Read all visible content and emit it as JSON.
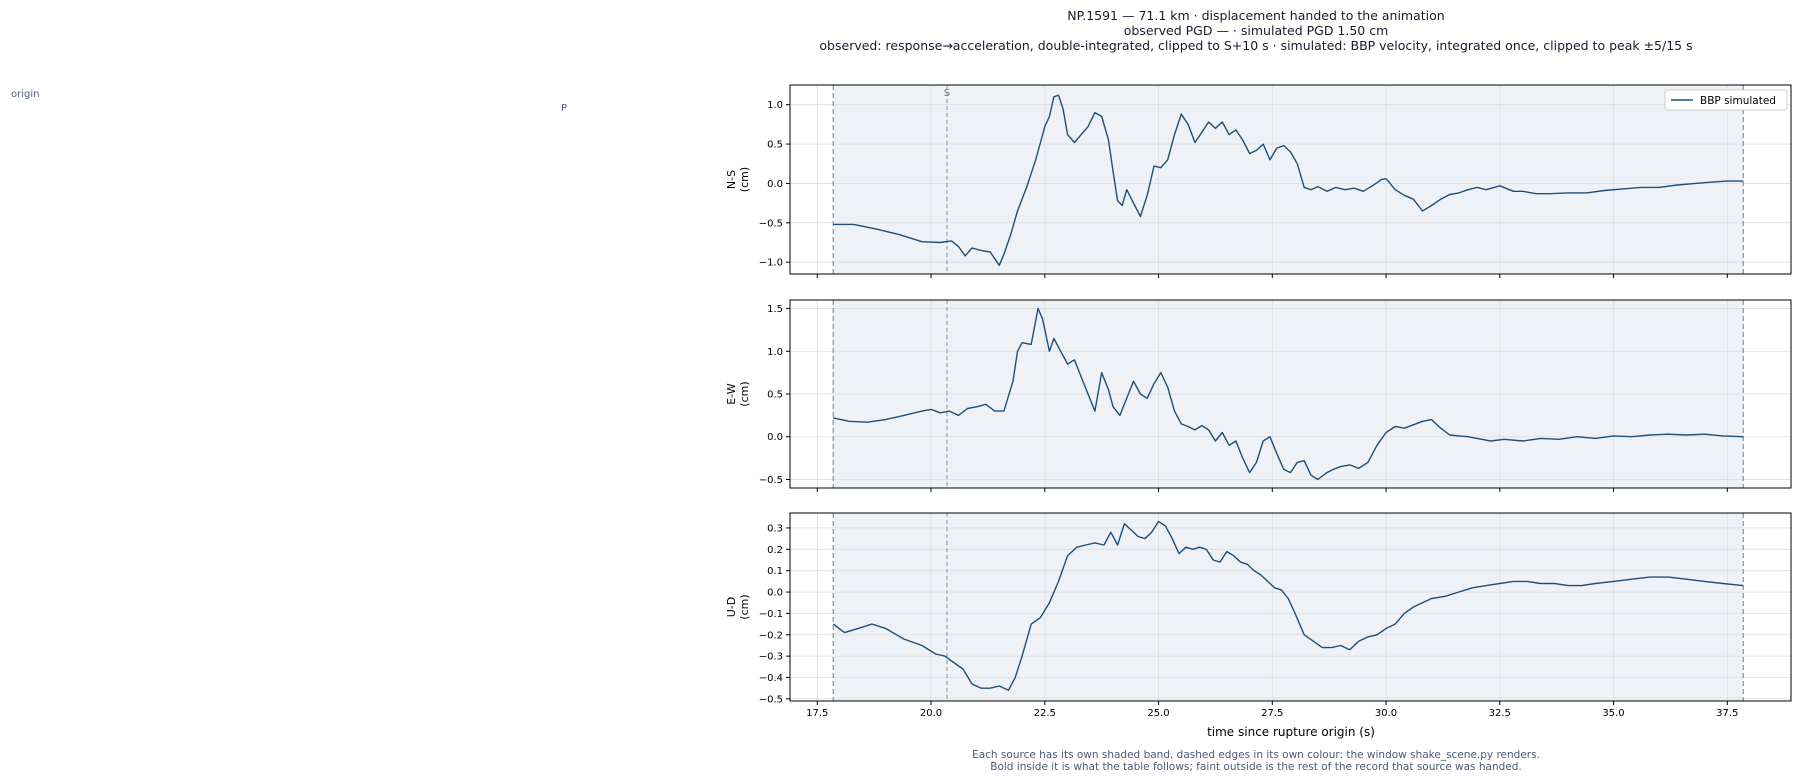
{
  "header": {
    "line1": "NP.1591  —  71.1 km   ·   displacement handed to the animation",
    "line2": "observed PGD —   ·   simulated PGD 1.50 cm",
    "line3": "observed: response→acceleration, double-integrated, clipped to S+10 s   ·   simulated: BBP velocity, integrated once, clipped to peak ±5/15 s"
  },
  "footer": {
    "line1": "Each source has its own shaded band, dashed edges in its own colour: the window shake_scene.py renders.",
    "line2": "Bold inside it is what the table follows;   faint outside is the rest of the record that source was handed."
  },
  "left_panel": {
    "origin_label": "origin",
    "p_label": "P"
  },
  "colors": {
    "series": "#1f4e79",
    "band": "#e3e9f0",
    "band_edge": "#6f86ad",
    "phase_line": "#8a9db5",
    "grid": "#dddddd",
    "footer_text": "#4a5a78"
  },
  "chart_data": {
    "type": "line",
    "xlabel": "time since rupture origin (s)",
    "xlim": [
      16.9,
      38.9
    ],
    "xticks": [
      17.5,
      20.0,
      22.5,
      25.0,
      27.5,
      30.0,
      32.5,
      35.0,
      37.5
    ],
    "xtick_labels": [
      "17.5",
      "20.0",
      "22.5",
      "25.0",
      "27.5",
      "30.0",
      "32.5",
      "35.0",
      "37.5"
    ],
    "window": [
      17.85,
      37.85
    ],
    "phase_markers": [
      {
        "label": "S",
        "t": 20.35
      }
    ],
    "legend": {
      "label": "BBP simulated",
      "placement": "top-right"
    },
    "grid": true,
    "panels": [
      {
        "ylabel_line1": "N-S",
        "ylabel_line2": "(cm)",
        "ylim": [
          -1.15,
          1.25
        ],
        "yticks": [
          -1.0,
          -0.5,
          0.0,
          0.5,
          1.0
        ],
        "ytick_labels": [
          "−1.0",
          "−0.5",
          "0.0",
          "0.5",
          "1.0"
        ],
        "series": [
          {
            "name": "BBP simulated",
            "x": [
              17.85,
              18.3,
              18.8,
              19.3,
              19.8,
              20.2,
              20.45,
              20.6,
              20.75,
              20.9,
              21.1,
              21.3,
              21.5,
              21.6,
              21.75,
              21.9,
              22.1,
              22.3,
              22.5,
              22.6,
              22.7,
              22.8,
              22.9,
              23.0,
              23.15,
              23.3,
              23.45,
              23.6,
              23.75,
              23.9,
              24.0,
              24.1,
              24.2,
              24.3,
              24.45,
              24.6,
              24.75,
              24.9,
              25.05,
              25.2,
              25.35,
              25.5,
              25.65,
              25.8,
              25.95,
              26.1,
              26.25,
              26.4,
              26.55,
              26.7,
              26.85,
              27.0,
              27.15,
              27.3,
              27.45,
              27.6,
              27.75,
              27.9,
              28.05,
              28.2,
              28.35,
              28.5,
              28.7,
              28.9,
              29.1,
              29.3,
              29.5,
              29.7,
              29.9,
              30.0,
              30.2,
              30.4,
              30.6,
              30.8,
              31.0,
              31.2,
              31.4,
              31.6,
              31.8,
              32.0,
              32.2,
              32.5,
              32.8,
              33.0,
              33.3,
              33.6,
              34.0,
              34.4,
              34.8,
              35.2,
              35.6,
              36.0,
              36.4,
              36.8,
              37.2,
              37.5,
              37.85
            ],
            "y": [
              -0.52,
              -0.52,
              -0.58,
              -0.65,
              -0.74,
              -0.75,
              -0.73,
              -0.8,
              -0.92,
              -0.82,
              -0.85,
              -0.87,
              -1.04,
              -0.9,
              -0.65,
              -0.35,
              -0.05,
              0.3,
              0.72,
              0.85,
              1.1,
              1.12,
              0.95,
              0.62,
              0.52,
              0.62,
              0.72,
              0.9,
              0.85,
              0.55,
              0.15,
              -0.22,
              -0.28,
              -0.08,
              -0.25,
              -0.42,
              -0.15,
              0.22,
              0.2,
              0.3,
              0.62,
              0.88,
              0.75,
              0.52,
              0.65,
              0.78,
              0.7,
              0.78,
              0.62,
              0.68,
              0.55,
              0.38,
              0.42,
              0.5,
              0.3,
              0.45,
              0.48,
              0.4,
              0.25,
              -0.05,
              -0.08,
              -0.04,
              -0.1,
              -0.05,
              -0.08,
              -0.06,
              -0.1,
              -0.03,
              0.05,
              0.06,
              -0.08,
              -0.15,
              -0.2,
              -0.35,
              -0.28,
              -0.2,
              -0.14,
              -0.12,
              -0.08,
              -0.05,
              -0.08,
              -0.03,
              -0.1,
              -0.1,
              -0.13,
              -0.13,
              -0.12,
              -0.12,
              -0.09,
              -0.07,
              -0.05,
              -0.05,
              -0.02,
              0.0,
              0.02,
              0.03,
              0.03
            ]
          }
        ]
      },
      {
        "ylabel_line1": "E-W",
        "ylabel_line2": "(cm)",
        "ylim": [
          -0.6,
          1.6
        ],
        "yticks": [
          -0.5,
          0.0,
          0.5,
          1.0,
          1.5
        ],
        "ytick_labels": [
          "−0.5",
          "0.0",
          "0.5",
          "1.0",
          "1.5"
        ],
        "series": [
          {
            "name": "BBP simulated",
            "x": [
              17.85,
              18.2,
              18.6,
              19.0,
              19.4,
              19.8,
              20.0,
              20.2,
              20.4,
              20.6,
              20.8,
              21.0,
              21.2,
              21.4,
              21.6,
              21.8,
              21.9,
              22.0,
              22.2,
              22.35,
              22.45,
              22.6,
              22.7,
              22.85,
              23.0,
              23.15,
              23.3,
              23.45,
              23.6,
              23.75,
              23.9,
              24.0,
              24.15,
              24.3,
              24.45,
              24.6,
              24.75,
              24.9,
              25.05,
              25.2,
              25.35,
              25.5,
              25.65,
              25.8,
              25.95,
              26.1,
              26.25,
              26.4,
              26.55,
              26.7,
              26.85,
              27.0,
              27.15,
              27.3,
              27.45,
              27.6,
              27.75,
              27.9,
              28.05,
              28.2,
              28.35,
              28.5,
              28.7,
              28.85,
              29.0,
              29.2,
              29.4,
              29.6,
              29.8,
              30.0,
              30.2,
              30.4,
              30.6,
              30.8,
              31.0,
              31.2,
              31.4,
              31.6,
              31.8,
              32.0,
              32.3,
              32.6,
              33.0,
              33.4,
              33.8,
              34.2,
              34.6,
              35.0,
              35.4,
              35.8,
              36.2,
              36.6,
              37.0,
              37.4,
              37.85
            ],
            "y": [
              0.22,
              0.18,
              0.17,
              0.2,
              0.25,
              0.3,
              0.32,
              0.28,
              0.3,
              0.25,
              0.33,
              0.35,
              0.38,
              0.3,
              0.3,
              0.65,
              1.0,
              1.1,
              1.08,
              1.5,
              1.38,
              1.0,
              1.15,
              1.0,
              0.85,
              0.9,
              0.7,
              0.5,
              0.3,
              0.75,
              0.55,
              0.35,
              0.25,
              0.45,
              0.65,
              0.5,
              0.45,
              0.62,
              0.75,
              0.58,
              0.3,
              0.15,
              0.12,
              0.08,
              0.13,
              0.08,
              -0.05,
              0.05,
              -0.1,
              -0.05,
              -0.25,
              -0.42,
              -0.3,
              -0.05,
              0.0,
              -0.2,
              -0.38,
              -0.42,
              -0.3,
              -0.28,
              -0.45,
              -0.5,
              -0.42,
              -0.38,
              -0.35,
              -0.33,
              -0.37,
              -0.3,
              -0.1,
              0.05,
              0.12,
              0.1,
              0.14,
              0.18,
              0.2,
              0.1,
              0.02,
              0.01,
              0.0,
              -0.02,
              -0.05,
              -0.03,
              -0.05,
              -0.02,
              -0.03,
              0.0,
              -0.02,
              0.01,
              0.0,
              0.02,
              0.03,
              0.02,
              0.03,
              0.01,
              0.0
            ]
          }
        ]
      },
      {
        "ylabel_line1": "U-D",
        "ylabel_line2": "(cm)",
        "ylim": [
          -0.51,
          0.37
        ],
        "yticks": [
          -0.5,
          -0.4,
          -0.3,
          -0.2,
          -0.1,
          0.0,
          0.1,
          0.2,
          0.3
        ],
        "ytick_labels": [
          "−0.5",
          "−0.4",
          "−0.3",
          "−0.2",
          "−0.1",
          "0.0",
          "0.1",
          "0.2",
          "0.3"
        ],
        "series": [
          {
            "name": "BBP simulated",
            "x": [
              17.85,
              18.1,
              18.4,
              18.7,
              19.0,
              19.4,
              19.8,
              20.1,
              20.3,
              20.5,
              20.7,
              20.9,
              21.1,
              21.3,
              21.5,
              21.7,
              21.85,
              22.0,
              22.2,
              22.4,
              22.6,
              22.8,
              23.0,
              23.2,
              23.4,
              23.6,
              23.8,
              23.95,
              24.1,
              24.25,
              24.4,
              24.55,
              24.7,
              24.85,
              25.0,
              25.15,
              25.3,
              25.45,
              25.6,
              25.75,
              25.9,
              26.05,
              26.2,
              26.35,
              26.5,
              26.65,
              26.8,
              26.95,
              27.1,
              27.25,
              27.4,
              27.55,
              27.7,
              27.85,
              28.0,
              28.2,
              28.4,
              28.6,
              28.8,
              29.0,
              29.2,
              29.4,
              29.6,
              29.8,
              30.0,
              30.2,
              30.4,
              30.6,
              30.8,
              31.0,
              31.3,
              31.6,
              31.9,
              32.2,
              32.5,
              32.8,
              33.1,
              33.4,
              33.7,
              34.0,
              34.3,
              34.6,
              35.0,
              35.4,
              35.8,
              36.2,
              36.6,
              37.0,
              37.4,
              37.85
            ],
            "y": [
              -0.15,
              -0.19,
              -0.17,
              -0.15,
              -0.17,
              -0.22,
              -0.25,
              -0.29,
              -0.3,
              -0.33,
              -0.36,
              -0.43,
              -0.45,
              -0.45,
              -0.44,
              -0.46,
              -0.4,
              -0.3,
              -0.15,
              -0.12,
              -0.05,
              0.05,
              0.17,
              0.21,
              0.22,
              0.23,
              0.22,
              0.28,
              0.22,
              0.32,
              0.29,
              0.26,
              0.25,
              0.28,
              0.33,
              0.31,
              0.25,
              0.18,
              0.21,
              0.2,
              0.21,
              0.2,
              0.15,
              0.14,
              0.19,
              0.17,
              0.14,
              0.13,
              0.1,
              0.08,
              0.05,
              0.02,
              0.01,
              -0.03,
              -0.1,
              -0.2,
              -0.23,
              -0.26,
              -0.26,
              -0.25,
              -0.27,
              -0.23,
              -0.21,
              -0.2,
              -0.17,
              -0.15,
              -0.1,
              -0.07,
              -0.05,
              -0.03,
              -0.02,
              0.0,
              0.02,
              0.03,
              0.04,
              0.05,
              0.05,
              0.04,
              0.04,
              0.03,
              0.03,
              0.04,
              0.05,
              0.06,
              0.07,
              0.07,
              0.06,
              0.05,
              0.04,
              0.03
            ]
          }
        ]
      }
    ]
  }
}
